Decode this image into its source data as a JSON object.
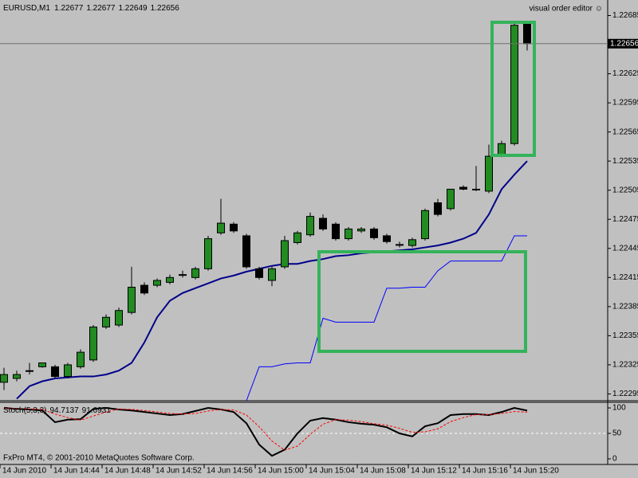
{
  "chart_data": [
    {
      "type": "candlestick",
      "title": "EURUSD,M1",
      "categories": [
        "14 Jun 2010",
        null,
        null,
        null,
        "14 Jun 14:44",
        null,
        null,
        null,
        "14 Jun 14:48",
        null,
        null,
        null,
        "14 Jun 14:52",
        null,
        null,
        null,
        "14 Jun 14:56",
        null,
        null,
        null,
        "14 Jun 15:00",
        null,
        null,
        null,
        "14 Jun 15:04",
        null,
        null,
        null,
        "14 Jun 15:08",
        null,
        null,
        null,
        "14 Jun 15:12",
        null,
        null,
        null,
        "14 Jun 15:16",
        null,
        null,
        null,
        "14 Jun 15:20",
        null
      ],
      "open": [
        1.22307,
        1.22311,
        1.22319,
        1.22323,
        1.22323,
        1.22313,
        1.22323,
        1.2233,
        1.22364,
        1.22366,
        1.22379,
        1.22407,
        1.22407,
        1.2241,
        1.22418,
        1.22415,
        1.22424,
        1.22461,
        1.2247,
        1.22458,
        1.22424,
        1.22412,
        1.22426,
        1.22451,
        1.22459,
        1.22476,
        1.2247,
        1.22455,
        1.22463,
        1.22465,
        1.22458,
        1.22449,
        1.22448,
        1.22455,
        1.22492,
        1.22486,
        1.22508,
        1.22506,
        1.22504,
        1.22541,
        1.22553,
        1.22677
      ],
      "high": [
        1.22322,
        1.22319,
        1.22327,
        1.22327,
        1.22325,
        1.22327,
        1.22341,
        1.22366,
        1.22377,
        1.22384,
        1.22426,
        1.2241,
        1.22414,
        1.22418,
        1.22422,
        1.22426,
        1.22458,
        1.22496,
        1.22472,
        1.2246,
        1.22426,
        1.22426,
        1.22458,
        1.22463,
        1.22482,
        1.2248,
        1.22472,
        1.22467,
        1.22467,
        1.22467,
        1.2246,
        1.22452,
        1.22456,
        1.22486,
        1.22496,
        1.22506,
        1.2251,
        1.2253,
        1.22552,
        1.22556,
        1.22677,
        1.22677
      ],
      "low": [
        1.22299,
        1.22308,
        1.22315,
        1.22322,
        1.22311,
        1.22311,
        1.22321,
        1.22328,
        1.22362,
        1.22364,
        1.22377,
        1.22397,
        1.22405,
        1.22408,
        1.22415,
        1.22413,
        1.22422,
        1.22459,
        1.22461,
        1.22424,
        1.22413,
        1.22406,
        1.22424,
        1.22449,
        1.22457,
        1.22463,
        1.22453,
        1.22453,
        1.22461,
        1.22454,
        1.2245,
        1.22446,
        1.22446,
        1.22453,
        1.22478,
        1.22484,
        1.22505,
        1.22504,
        1.22502,
        1.22539,
        1.22551,
        1.22649
      ],
      "close": [
        1.22315,
        1.22315,
        1.22319,
        1.22327,
        1.22313,
        1.22325,
        1.22338,
        1.22364,
        1.22374,
        1.22381,
        1.22405,
        1.22399,
        1.22412,
        1.22415,
        1.22418,
        1.22424,
        1.22455,
        1.22471,
        1.22463,
        1.22426,
        1.22415,
        1.22424,
        1.22453,
        1.22461,
        1.22478,
        1.22465,
        1.22455,
        1.22465,
        1.22465,
        1.22456,
        1.22452,
        1.22449,
        1.22454,
        1.22484,
        1.2248,
        1.22506,
        1.22506,
        1.22506,
        1.2254,
        1.22553,
        1.22675,
        1.22656
      ],
      "up_color": "#228b22",
      "down_color": "#000000",
      "overlays": [
        {
          "color": "#00008b",
          "values": [
            null,
            1.2229,
            1.22303,
            1.22308,
            1.22311,
            1.22312,
            1.22313,
            1.22313,
            1.22315,
            1.22319,
            1.22327,
            1.22348,
            1.22374,
            1.22391,
            1.22399,
            1.22404,
            1.22409,
            1.22414,
            1.22417,
            1.22421,
            1.22424,
            1.22427,
            1.22429,
            1.22429,
            1.22432,
            1.22434,
            1.22437,
            1.22438,
            1.2244,
            1.22441,
            1.22442,
            1.22443,
            1.22444,
            1.22446,
            1.22448,
            1.22451,
            1.22455,
            1.22461,
            1.2248,
            1.22506,
            1.22521,
            1.22535
          ]
        },
        {
          "color": "#0000ff",
          "values": [
            null,
            null,
            null,
            null,
            null,
            null,
            null,
            null,
            null,
            null,
            null,
            null,
            null,
            null,
            null,
            null,
            null,
            null,
            null,
            1.22288,
            1.22323,
            1.22323,
            1.22326,
            1.22327,
            1.22327,
            1.22373,
            1.22369,
            1.22369,
            1.22369,
            1.22369,
            1.22404,
            1.22404,
            1.22405,
            1.22405,
            1.22422,
            1.22432,
            1.22432,
            1.22432,
            1.22432,
            1.22432,
            1.22458,
            1.22458
          ]
        }
      ],
      "ylim": [
        1.22288,
        1.22701
      ],
      "yticks": [
        1.22685,
        1.22625,
        1.22595,
        1.22565,
        1.22535,
        1.22505,
        1.22475,
        1.22445,
        1.22415,
        1.22385,
        1.22355,
        1.22325,
        1.22295
      ],
      "annotations": [
        "visual order editor ☺",
        "FxPro MT4, © 2001-2010 MetaQuotes Software Corp."
      ]
    },
    {
      "type": "line",
      "title": "Stoch(5,3,3)",
      "series": [
        {
          "color": "#000000",
          "values": [
            100,
            98,
            97,
            95,
            72,
            77,
            78,
            98,
            100,
            97,
            95,
            92,
            89,
            86,
            88,
            94,
            100,
            97,
            92,
            70,
            28,
            6,
            18,
            50,
            75,
            80,
            77,
            72,
            69,
            67,
            62,
            50,
            44,
            64,
            70,
            86,
            88,
            88,
            86,
            92,
            100,
            94.7137
          ]
        },
        {
          "color": "#ff0000",
          "dashed": true,
          "values": [
            100,
            99,
            98,
            97,
            88,
            81,
            76,
            84,
            92,
            98,
            97,
            95,
            92,
            89,
            88,
            89,
            94,
            97,
            96,
            86,
            63,
            35,
            17,
            25,
            48,
            68,
            77,
            76,
            73,
            69,
            66,
            60,
            52,
            53,
            59,
            73,
            81,
            87,
            87,
            89,
            93,
            91.6931
          ]
        }
      ],
      "ylim": [
        -11,
        111
      ],
      "yticks": [
        100,
        50,
        0
      ],
      "levels": [
        50
      ]
    }
  ]
}
